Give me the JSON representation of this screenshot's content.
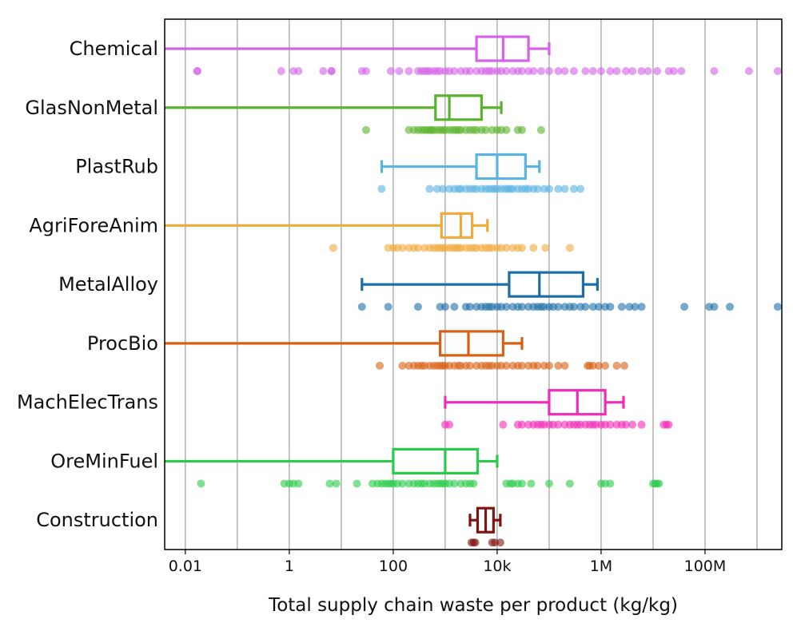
{
  "chart_data": {
    "type": "box",
    "title": "",
    "xlabel": "Total supply chain waste per product (kg/kg)",
    "ylabel": "",
    "xscale": "log",
    "xlim": [
      0.004,
      3000000000
    ],
    "grid": {
      "x": true,
      "y": false
    },
    "xticks": [
      {
        "value": 0.01,
        "label": "0.01"
      },
      {
        "value": 1,
        "label": "1"
      },
      {
        "value": 100,
        "label": "100"
      },
      {
        "value": 10000,
        "label": "10k"
      },
      {
        "value": 1000000,
        "label": "1M"
      },
      {
        "value": 100000000,
        "label": "100M"
      }
    ],
    "gridlines": [
      0.01,
      0.1,
      1,
      10,
      100,
      1000,
      10000,
      100000,
      1000000,
      10000000,
      100000000,
      1000000000
    ],
    "categories": [
      {
        "name": "Chemical",
        "color": "#d463e8",
        "box": {
          "whisker_low": 0.004,
          "q1": 4000,
          "median": 13000,
          "q3": 40000,
          "whisker_high": 100000
        },
        "points": [
          0.017,
          0.017,
          0.7,
          1.2,
          1.5,
          4.5,
          6.5,
          6.5,
          25,
          30,
          90,
          130,
          200,
          300,
          350,
          400,
          450,
          500,
          600,
          700,
          800,
          1000,
          1200,
          1500,
          2000,
          2500,
          3000,
          4000,
          5000,
          6000,
          7000,
          8000,
          10000,
          12000,
          15000,
          20000,
          25000,
          30000,
          40000,
          50000,
          70000,
          100000,
          150000,
          200000,
          300000,
          500000,
          700000,
          1000000,
          1500000,
          2000000,
          3000000,
          4000000,
          6000000,
          8000000,
          12000000,
          20000000,
          25000000,
          35000000,
          150000000,
          700000000,
          2500000000
        ]
      },
      {
        "name": "GlasNonMetal",
        "color": "#5ab22c",
        "box": {
          "whisker_low": 0.004,
          "q1": 650,
          "median": 1200,
          "q3": 5000,
          "whisker_high": 12000
        },
        "points": [
          30,
          200,
          250,
          300,
          350,
          400,
          450,
          500,
          550,
          600,
          700,
          800,
          900,
          1000,
          1200,
          1400,
          1600,
          1800,
          2000,
          2500,
          3000,
          3500,
          4000,
          5000,
          6000,
          8000,
          10000,
          12000,
          15000,
          25000,
          30000,
          70000
        ]
      },
      {
        "name": "PlastRub",
        "color": "#5ab3e3",
        "box": {
          "whisker_low": 60,
          "q1": 4000,
          "median": 10000,
          "q3": 35000,
          "whisker_high": 65000
        },
        "points": [
          60,
          500,
          700,
          900,
          1200,
          1500,
          1800,
          2000,
          2500,
          3000,
          3500,
          4000,
          5000,
          6000,
          7000,
          8000,
          9000,
          10000,
          12000,
          14000,
          16000,
          18000,
          20000,
          25000,
          30000,
          35000,
          40000,
          50000,
          60000,
          80000,
          100000,
          150000,
          200000,
          300000,
          400000
        ]
      },
      {
        "name": "AgriForeAnim",
        "color": "#f0aa3c",
        "box": {
          "whisker_low": 0.004,
          "q1": 850,
          "median": 2000,
          "q3": 3300,
          "whisker_high": 6500
        },
        "points": [
          7,
          80,
          100,
          120,
          150,
          200,
          250,
          300,
          400,
          500,
          600,
          700,
          800,
          900,
          1000,
          1200,
          1400,
          1600,
          1800,
          2000,
          2500,
          3000,
          3500,
          4000,
          5000,
          6000,
          7000,
          8000,
          10000,
          12000,
          15000,
          20000,
          25000,
          30000,
          50000,
          85000,
          250000
        ]
      },
      {
        "name": "MetalAlloy",
        "color": "#1b6fa8",
        "box": {
          "whisker_low": 25,
          "q1": 17000,
          "median": 65000,
          "q3": 450000,
          "whisker_high": 850000
        },
        "points": [
          25,
          80,
          300,
          800,
          1000,
          1500,
          2500,
          3000,
          4000,
          5000,
          6000,
          7000,
          8000,
          10000,
          12000,
          15000,
          20000,
          25000,
          30000,
          40000,
          50000,
          60000,
          70000,
          80000,
          100000,
          120000,
          150000,
          200000,
          250000,
          300000,
          400000,
          500000,
          700000,
          900000,
          1200000,
          1500000,
          2500000,
          3500000,
          4500000,
          6000000,
          40000000,
          120000000,
          150000000,
          300000000,
          2500000000
        ]
      },
      {
        "name": "ProcBio",
        "color": "#d86012",
        "box": {
          "whisker_low": 0.004,
          "q1": 800,
          "median": 2800,
          "q3": 13000,
          "whisker_high": 30000
        },
        "points": [
          55,
          150,
          200,
          250,
          300,
          350,
          400,
          500,
          600,
          700,
          800,
          900,
          1000,
          1200,
          1500,
          1800,
          2000,
          2500,
          3000,
          4000,
          5000,
          6000,
          7000,
          8000,
          10000,
          12000,
          15000,
          20000,
          25000,
          30000,
          40000,
          50000,
          60000,
          80000,
          100000,
          150000,
          200000,
          550000,
          600000,
          700000,
          900000,
          1200000,
          2000000,
          2800000
        ]
      },
      {
        "name": "MachElecTrans",
        "color": "#f22bb8",
        "box": {
          "whisker_low": 1000,
          "q1": 100000,
          "median": 350000,
          "q3": 1200000,
          "whisker_high": 2700000
        },
        "points": [
          1000,
          1200,
          13000,
          25000,
          30000,
          40000,
          50000,
          60000,
          70000,
          80000,
          100000,
          120000,
          150000,
          200000,
          250000,
          300000,
          350000,
          400000,
          500000,
          600000,
          700000,
          800000,
          1000000,
          1200000,
          1500000,
          2000000,
          2500000,
          3000000,
          4000000,
          6000000,
          16000000,
          18000000,
          20000000
        ]
      },
      {
        "name": "OreMinFuel",
        "color": "#2acb4a",
        "box": {
          "whisker_low": 0.004,
          "q1": 100,
          "median": 1000,
          "q3": 4200,
          "whisker_high": 10000
        },
        "points": [
          0.02,
          0.8,
          1.0,
          1.2,
          1.5,
          6,
          8,
          20,
          40,
          50,
          60,
          70,
          80,
          90,
          100,
          120,
          150,
          200,
          250,
          300,
          350,
          400,
          500,
          600,
          700,
          800,
          900,
          1000,
          1200,
          1500,
          2000,
          2500,
          3000,
          3500,
          15000,
          18000,
          20000,
          25000,
          30000,
          45000,
          100000,
          250000,
          1000000,
          1200000,
          1500000,
          10000000,
          11000000,
          12000000,
          13000000
        ]
      },
      {
        "name": "Construction",
        "color": "#7d1414",
        "box": {
          "whisker_low": 3000,
          "q1": 4200,
          "median": 6000,
          "q3": 8500,
          "whisker_high": 11500
        },
        "points": [
          3200,
          3500,
          3800,
          8000,
          9000,
          11500
        ]
      }
    ]
  }
}
